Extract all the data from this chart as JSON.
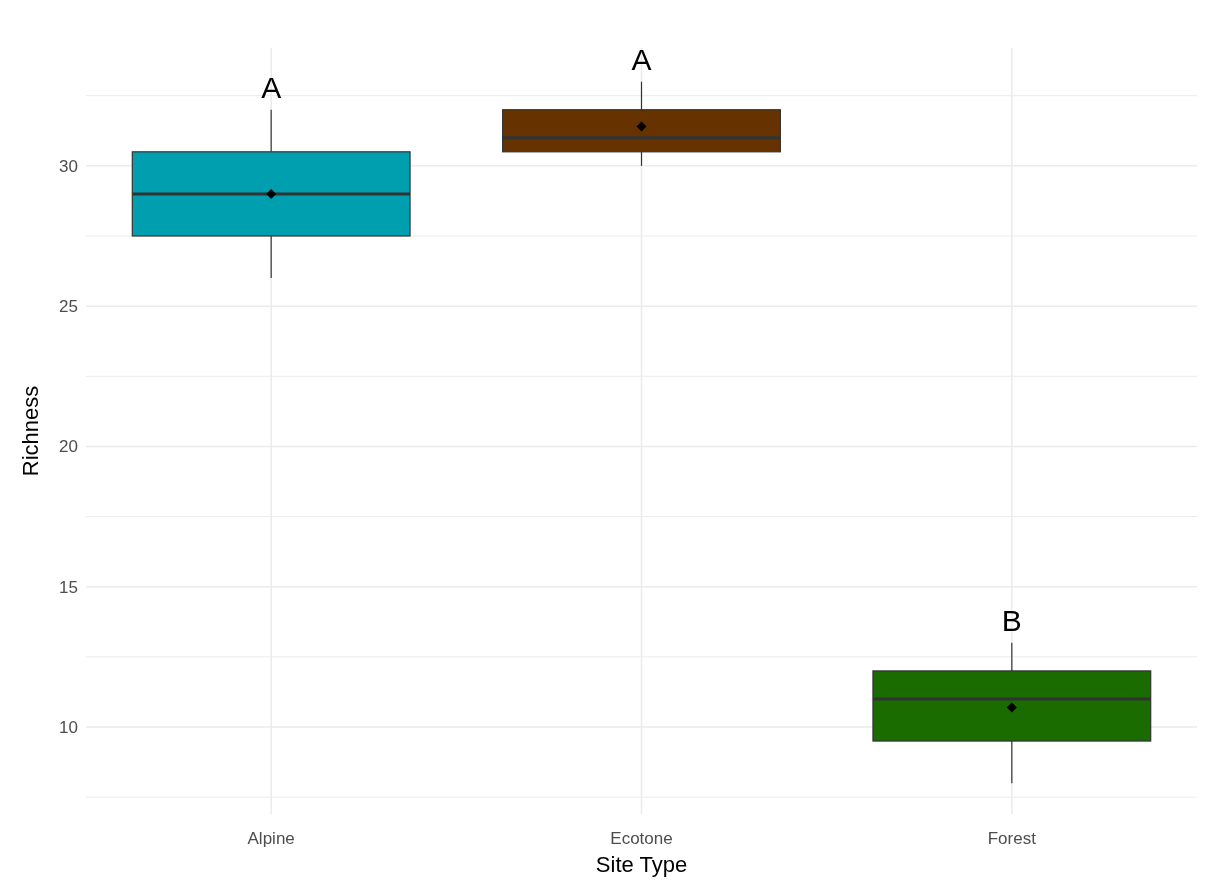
{
  "chart_data": {
    "type": "box",
    "xlabel": "Site Type",
    "ylabel": "Richness",
    "categories": [
      "Alpine",
      "Ecotone",
      "Forest"
    ],
    "colors": [
      "#009fb0",
      "#663300",
      "#1a6b00"
    ],
    "boxes": [
      {
        "low": 26,
        "q1": 27.5,
        "median": 29,
        "q3": 30.5,
        "high": 32,
        "mean": 29
      },
      {
        "low": 30,
        "q1": 30.5,
        "median": 31,
        "q3": 32,
        "high": 33,
        "mean": 31.4
      },
      {
        "low": 8,
        "q1": 9.5,
        "median": 11,
        "q3": 12,
        "high": 13,
        "mean": 10.7
      }
    ],
    "ylim": [
      6.9,
      34.2
    ],
    "yticks": [
      {
        "value": 7.5,
        "label": null
      },
      10,
      {
        "value": 12.5,
        "label": null
      },
      15,
      {
        "value": 17.5,
        "label": null
      },
      20,
      {
        "value": 22.5,
        "label": null
      },
      25,
      {
        "value": 27.5,
        "label": null
      },
      30,
      {
        "value": 32.5,
        "label": null
      }
    ],
    "annotations": [
      "A",
      "A",
      "B"
    ],
    "grid": true,
    "marker": "diamond"
  }
}
